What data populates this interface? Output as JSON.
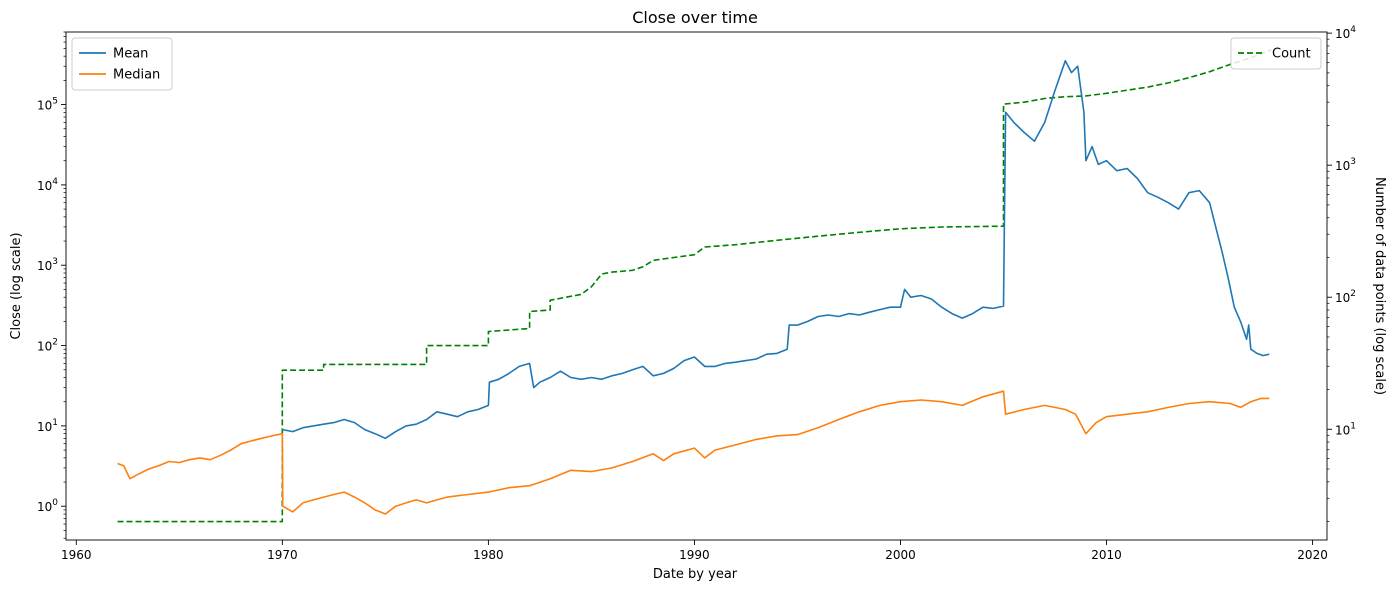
{
  "chart_data": {
    "type": "line",
    "title": "Close over time",
    "xlabel": "Date by year",
    "ylabel": "Close (log scale)",
    "y2label": "Number of data points (log scale)",
    "xlim": [
      1959.5,
      2020.7
    ],
    "ylim": [
      0.38,
      800000
    ],
    "y2lim": [
      1.45,
      10200
    ],
    "yscale": "log",
    "y2scale": "log",
    "grid": false,
    "x_ticks": [
      1960,
      1970,
      1980,
      1990,
      2000,
      2010,
      2020
    ],
    "y_ticks": [
      {
        "value": 1,
        "label": "10",
        "exp": "0"
      },
      {
        "value": 10,
        "label": "10",
        "exp": "1"
      },
      {
        "value": 100,
        "label": "10",
        "exp": "2"
      },
      {
        "value": 1000,
        "label": "10",
        "exp": "3"
      },
      {
        "value": 10000,
        "label": "10",
        "exp": "4"
      },
      {
        "value": 100000,
        "label": "10",
        "exp": "5"
      }
    ],
    "y2_ticks": [
      {
        "value": 10,
        "label": "10",
        "exp": "1"
      },
      {
        "value": 100,
        "label": "10",
        "exp": "2"
      },
      {
        "value": 1000,
        "label": "10",
        "exp": "3"
      },
      {
        "value": 10000,
        "label": "10",
        "exp": "4"
      }
    ],
    "legend_left": {
      "placement": "top-left",
      "entries": [
        "Mean",
        "Median"
      ]
    },
    "legend_right": {
      "placement": "top-right",
      "entries": [
        "Count"
      ]
    },
    "series": [
      {
        "name": "Mean",
        "axis": "left",
        "color": "#1f77b4",
        "style": "solid",
        "points": [
          [
            1970.0,
            9
          ],
          [
            1970.5,
            8.5
          ],
          [
            1971.0,
            9.5
          ],
          [
            1971.5,
            10
          ],
          [
            1972.0,
            10.5
          ],
          [
            1972.5,
            11
          ],
          [
            1973.0,
            12
          ],
          [
            1973.5,
            11
          ],
          [
            1974.0,
            9
          ],
          [
            1974.5,
            8
          ],
          [
            1975.0,
            7
          ],
          [
            1975.5,
            8.5
          ],
          [
            1976.0,
            10
          ],
          [
            1976.5,
            10.5
          ],
          [
            1977.0,
            12
          ],
          [
            1977.5,
            15
          ],
          [
            1978.0,
            14
          ],
          [
            1978.5,
            13
          ],
          [
            1979.0,
            15
          ],
          [
            1979.5,
            16
          ],
          [
            1980.0,
            18
          ],
          [
            1980.05,
            35
          ],
          [
            1980.5,
            38
          ],
          [
            1981.0,
            45
          ],
          [
            1981.5,
            55
          ],
          [
            1982.0,
            60
          ],
          [
            1982.2,
            30
          ],
          [
            1982.5,
            35
          ],
          [
            1983.0,
            40
          ],
          [
            1983.5,
            48
          ],
          [
            1984.0,
            40
          ],
          [
            1984.5,
            38
          ],
          [
            1985.0,
            40
          ],
          [
            1985.5,
            38
          ],
          [
            1986.0,
            42
          ],
          [
            1986.5,
            45
          ],
          [
            1987.0,
            50
          ],
          [
            1987.5,
            55
          ],
          [
            1988.0,
            42
          ],
          [
            1988.5,
            45
          ],
          [
            1989.0,
            52
          ],
          [
            1989.5,
            65
          ],
          [
            1990.0,
            72
          ],
          [
            1990.5,
            55
          ],
          [
            1991.0,
            55
          ],
          [
            1991.5,
            60
          ],
          [
            1992.0,
            62
          ],
          [
            1992.5,
            65
          ],
          [
            1993.0,
            68
          ],
          [
            1993.5,
            78
          ],
          [
            1994.0,
            80
          ],
          [
            1994.5,
            90
          ],
          [
            1994.6,
            180
          ],
          [
            1995.0,
            180
          ],
          [
            1995.5,
            200
          ],
          [
            1996.0,
            230
          ],
          [
            1996.5,
            240
          ],
          [
            1997.0,
            230
          ],
          [
            1997.5,
            250
          ],
          [
            1998.0,
            240
          ],
          [
            1998.5,
            260
          ],
          [
            1999.0,
            280
          ],
          [
            1999.5,
            300
          ],
          [
            2000.0,
            300
          ],
          [
            2000.2,
            500
          ],
          [
            2000.5,
            400
          ],
          [
            2001.0,
            420
          ],
          [
            2001.5,
            380
          ],
          [
            2002.0,
            300
          ],
          [
            2002.5,
            250
          ],
          [
            2003.0,
            220
          ],
          [
            2003.5,
            250
          ],
          [
            2004.0,
            300
          ],
          [
            2004.5,
            290
          ],
          [
            2005.0,
            310
          ],
          [
            2005.1,
            80000
          ],
          [
            2005.5,
            60000
          ],
          [
            2006.0,
            45000
          ],
          [
            2006.5,
            35000
          ],
          [
            2007.0,
            60000
          ],
          [
            2007.5,
            150000
          ],
          [
            2008.0,
            350000
          ],
          [
            2008.3,
            250000
          ],
          [
            2008.6,
            300000
          ],
          [
            2008.9,
            80000
          ],
          [
            2009.0,
            20000
          ],
          [
            2009.3,
            30000
          ],
          [
            2009.6,
            18000
          ],
          [
            2010.0,
            20000
          ],
          [
            2010.5,
            15000
          ],
          [
            2011.0,
            16000
          ],
          [
            2011.5,
            12000
          ],
          [
            2012.0,
            8000
          ],
          [
            2012.5,
            7000
          ],
          [
            2013.0,
            6000
          ],
          [
            2013.5,
            5000
          ],
          [
            2014.0,
            8000
          ],
          [
            2014.5,
            8500
          ],
          [
            2015.0,
            6000
          ],
          [
            2015.3,
            3000
          ],
          [
            2015.6,
            1500
          ],
          [
            2015.9,
            700
          ],
          [
            2016.2,
            300
          ],
          [
            2016.5,
            200
          ],
          [
            2016.8,
            120
          ],
          [
            2016.9,
            180
          ],
          [
            2017.0,
            90
          ],
          [
            2017.3,
            80
          ],
          [
            2017.6,
            75
          ],
          [
            2017.9,
            78
          ]
        ]
      },
      {
        "name": "Median",
        "axis": "left",
        "color": "#ff7f0e",
        "style": "solid",
        "points": [
          [
            1962.0,
            3.4
          ],
          [
            1962.3,
            3.2
          ],
          [
            1962.6,
            2.2
          ],
          [
            1963.0,
            2.5
          ],
          [
            1963.5,
            2.9
          ],
          [
            1964.0,
            3.2
          ],
          [
            1964.5,
            3.6
          ],
          [
            1965.0,
            3.5
          ],
          [
            1965.5,
            3.8
          ],
          [
            1966.0,
            4.0
          ],
          [
            1966.5,
            3.8
          ],
          [
            1967.0,
            4.3
          ],
          [
            1967.5,
            5.0
          ],
          [
            1968.0,
            6.0
          ],
          [
            1968.5,
            6.5
          ],
          [
            1969.0,
            7.0
          ],
          [
            1969.5,
            7.5
          ],
          [
            1970.0,
            8.0
          ],
          [
            1970.02,
            1.0
          ],
          [
            1970.5,
            0.85
          ],
          [
            1971.0,
            1.1
          ],
          [
            1971.5,
            1.2
          ],
          [
            1972.0,
            1.3
          ],
          [
            1972.5,
            1.4
          ],
          [
            1973.0,
            1.5
          ],
          [
            1973.5,
            1.3
          ],
          [
            1974.0,
            1.1
          ],
          [
            1974.5,
            0.9
          ],
          [
            1975.0,
            0.8
          ],
          [
            1975.5,
            1.0
          ],
          [
            1976.0,
            1.1
          ],
          [
            1976.5,
            1.2
          ],
          [
            1977.0,
            1.1
          ],
          [
            1977.5,
            1.2
          ],
          [
            1978.0,
            1.3
          ],
          [
            1979.0,
            1.4
          ],
          [
            1980.0,
            1.5
          ],
          [
            1981.0,
            1.7
          ],
          [
            1982.0,
            1.8
          ],
          [
            1983.0,
            2.2
          ],
          [
            1984.0,
            2.8
          ],
          [
            1985.0,
            2.7
          ],
          [
            1986.0,
            3.0
          ],
          [
            1987.0,
            3.6
          ],
          [
            1988.0,
            4.5
          ],
          [
            1988.5,
            3.7
          ],
          [
            1989.0,
            4.5
          ],
          [
            1990.0,
            5.3
          ],
          [
            1990.5,
            4.0
          ],
          [
            1991.0,
            5.0
          ],
          [
            1992.0,
            5.8
          ],
          [
            1993.0,
            6.8
          ],
          [
            1994.0,
            7.5
          ],
          [
            1995.0,
            7.8
          ],
          [
            1996.0,
            9.5
          ],
          [
            1997.0,
            12
          ],
          [
            1998.0,
            15
          ],
          [
            1999.0,
            18
          ],
          [
            2000.0,
            20
          ],
          [
            2001.0,
            21
          ],
          [
            2002.0,
            20
          ],
          [
            2003.0,
            18
          ],
          [
            2004.0,
            23
          ],
          [
            2005.0,
            27
          ],
          [
            2005.1,
            14
          ],
          [
            2006.0,
            16
          ],
          [
            2007.0,
            18
          ],
          [
            2008.0,
            16
          ],
          [
            2008.5,
            14
          ],
          [
            2009.0,
            8
          ],
          [
            2009.5,
            11
          ],
          [
            2010.0,
            13
          ],
          [
            2011.0,
            14
          ],
          [
            2012.0,
            15
          ],
          [
            2013.0,
            17
          ],
          [
            2014.0,
            19
          ],
          [
            2015.0,
            20
          ],
          [
            2016.0,
            19
          ],
          [
            2016.5,
            17
          ],
          [
            2017.0,
            20
          ],
          [
            2017.5,
            22
          ],
          [
            2017.9,
            22
          ]
        ]
      },
      {
        "name": "Count",
        "axis": "right",
        "color": "#008000",
        "style": "dashed",
        "points": [
          [
            1962.0,
            2
          ],
          [
            1970.0,
            2
          ],
          [
            1970.0,
            28
          ],
          [
            1972.0,
            28
          ],
          [
            1972.0,
            31
          ],
          [
            1977.0,
            31
          ],
          [
            1977.0,
            43
          ],
          [
            1980.0,
            43
          ],
          [
            1980.0,
            55
          ],
          [
            1982.0,
            58
          ],
          [
            1982.0,
            78
          ],
          [
            1983.0,
            80
          ],
          [
            1983.0,
            95
          ],
          [
            1984.5,
            105
          ],
          [
            1985.0,
            120
          ],
          [
            1985.5,
            150
          ],
          [
            1986.0,
            155
          ],
          [
            1987.0,
            160
          ],
          [
            1987.5,
            170
          ],
          [
            1988.0,
            190
          ],
          [
            1989.0,
            200
          ],
          [
            1990.0,
            210
          ],
          [
            1990.5,
            240
          ],
          [
            1992.0,
            250
          ],
          [
            1994.0,
            270
          ],
          [
            1996.0,
            290
          ],
          [
            1998.0,
            310
          ],
          [
            2000.0,
            330
          ],
          [
            2002.0,
            340
          ],
          [
            2005.0,
            345
          ],
          [
            2005.0,
            2900
          ],
          [
            2006.0,
            3000
          ],
          [
            2007.0,
            3200
          ],
          [
            2008.0,
            3300
          ],
          [
            2009.0,
            3350
          ],
          [
            2010.0,
            3500
          ],
          [
            2011.0,
            3700
          ],
          [
            2012.0,
            3900
          ],
          [
            2013.0,
            4200
          ],
          [
            2014.0,
            4600
          ],
          [
            2015.0,
            5100
          ],
          [
            2016.0,
            5800
          ],
          [
            2017.0,
            6500
          ],
          [
            2018.0,
            7500
          ]
        ]
      }
    ]
  }
}
